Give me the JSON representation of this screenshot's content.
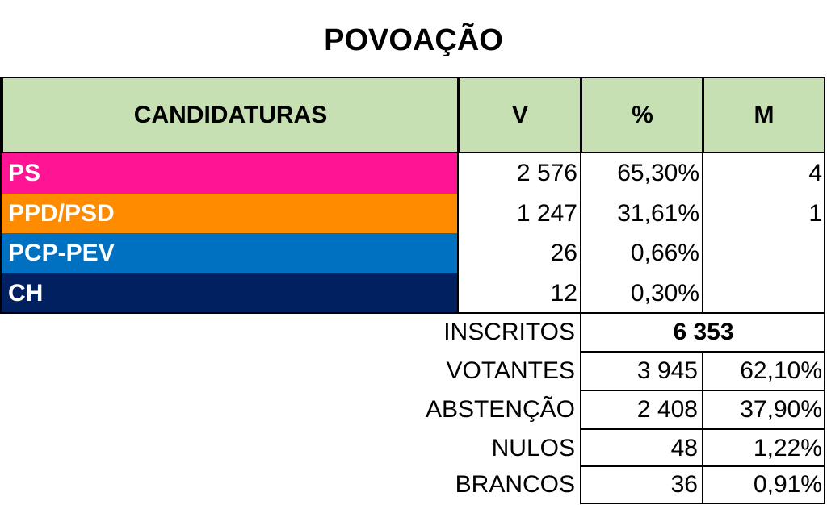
{
  "title": "POVOAÇÃO",
  "header": {
    "candidaturas": "CANDIDATURAS",
    "v": "V",
    "pct": "%",
    "m": "M"
  },
  "header_color": "#c6e0b4",
  "rows": [
    {
      "party": "PS",
      "color": "#ff1493",
      "votes": "2 576",
      "pct": "65,30%",
      "mandates": "4"
    },
    {
      "party": "PPD/PSD",
      "color": "#ff8c00",
      "votes": "1 247",
      "pct": "31,61%",
      "mandates": "1"
    },
    {
      "party": "PCP-PEV",
      "color": "#0070c0",
      "votes": "26",
      "pct": "0,66%",
      "mandates": ""
    },
    {
      "party": "CH",
      "color": "#002060",
      "votes": "12",
      "pct": "0,30%",
      "mandates": ""
    }
  ],
  "summary": {
    "inscritos": {
      "label": "INSCRITOS",
      "value": "6 353"
    },
    "votantes": {
      "label": "VOTANTES",
      "value": "3 945",
      "pct": "62,10%"
    },
    "abstencao": {
      "label": "ABSTENÇÃO",
      "value": "2 408",
      "pct": "37,90%"
    },
    "nulos": {
      "label": "NULOS",
      "value": "48",
      "pct": "1,22%"
    },
    "brancos": {
      "label": "BRANCOS",
      "value": "36",
      "pct": "0,91%"
    }
  }
}
